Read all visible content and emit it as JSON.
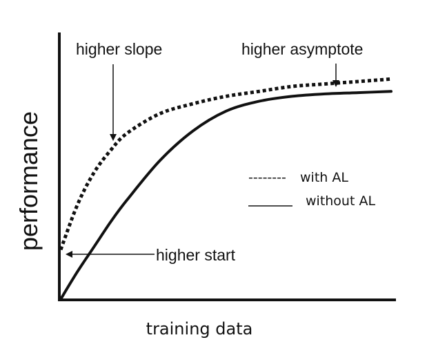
{
  "chart_data": {
    "type": "line",
    "title": "",
    "xlabel": "training data",
    "ylabel": "performance",
    "xlim": [
      0,
      1
    ],
    "ylim": [
      0,
      1
    ],
    "grid": false,
    "legend_position": "right-middle",
    "series": [
      {
        "name": "with AL",
        "style": "dotted",
        "x": [
          0.0,
          0.05,
          0.1,
          0.15,
          0.2,
          0.3,
          0.4,
          0.5,
          0.6,
          0.7,
          0.8,
          0.9,
          1.0
        ],
        "y": [
          0.2,
          0.38,
          0.51,
          0.6,
          0.67,
          0.75,
          0.79,
          0.82,
          0.84,
          0.86,
          0.87,
          0.88,
          0.89
        ]
      },
      {
        "name": "without AL",
        "style": "solid",
        "x": [
          0.0,
          0.05,
          0.1,
          0.15,
          0.2,
          0.3,
          0.4,
          0.5,
          0.6,
          0.7,
          0.8,
          0.9,
          1.0
        ],
        "y": [
          0.0,
          0.11,
          0.21,
          0.31,
          0.4,
          0.56,
          0.68,
          0.76,
          0.8,
          0.82,
          0.83,
          0.835,
          0.84
        ]
      }
    ],
    "annotations": [
      {
        "text": "higher slope",
        "id": "slope"
      },
      {
        "text": "higher asymptote",
        "id": "asymptote"
      },
      {
        "text": "higher start",
        "id": "start"
      }
    ],
    "legend": [
      {
        "sample": "--------",
        "label": "with AL"
      },
      {
        "sample": "______",
        "label": "without AL"
      }
    ]
  }
}
